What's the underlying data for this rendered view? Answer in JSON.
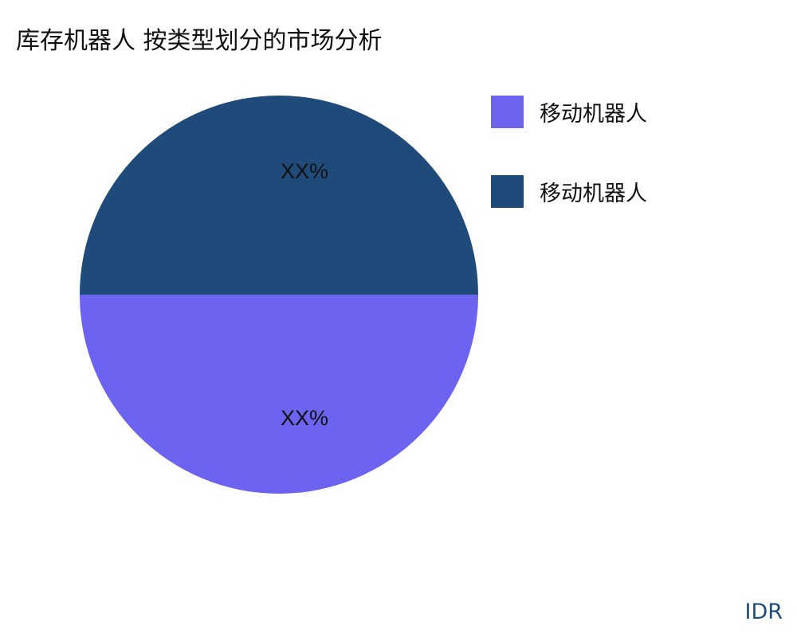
{
  "chart_data": {
    "type": "pie",
    "title": "库存机器人 按类型划分的市场分析",
    "slices": [
      {
        "name": "移动机器人",
        "value": 50,
        "label": "XX%",
        "color": "#6c63f0"
      },
      {
        "name": "移动机器人",
        "value": 50,
        "label": "XX%",
        "color": "#1f4b7a"
      }
    ],
    "legend_position": "right"
  },
  "watermark": "IDR"
}
